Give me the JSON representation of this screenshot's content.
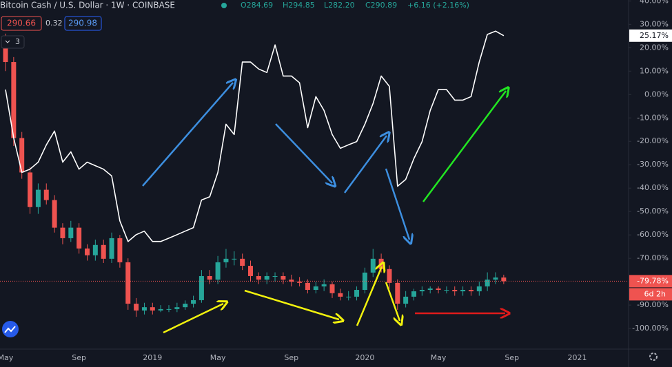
{
  "header": {
    "title": "Bitcoin Cash / U.S. Dollar · 1W · COINBASE",
    "ohlc": [
      "O284.69",
      "H294.85",
      "L282.20",
      "C290.89",
      "+6.16 (+2.16%)"
    ],
    "sell_price": "290.66",
    "spread": "0.32",
    "buy_price": "290.98",
    "indicator_count": "3"
  },
  "countdown": "6d 2h",
  "chart_data": {
    "type": "candlestick",
    "up_color": "#26a69a",
    "down_color": "#ef5350",
    "categories": [
      "May",
      null,
      null,
      null,
      null,
      null,
      null,
      null,
      null,
      "Sep",
      null,
      null,
      null,
      null,
      null,
      null,
      null,
      null,
      "2019",
      null,
      null,
      null,
      null,
      null,
      null,
      null,
      "May",
      null,
      null,
      null,
      null,
      null,
      null,
      null,
      null,
      "Sep",
      null,
      null,
      null,
      null,
      null,
      null,
      null,
      null,
      "2020",
      null,
      null,
      null,
      null,
      null,
      null,
      null,
      null,
      "May",
      null,
      null,
      null,
      null,
      null,
      null,
      null,
      null,
      "Sep",
      null,
      null,
      null,
      null,
      null,
      null,
      null,
      "2021",
      null
    ],
    "open": [
      22.7,
      13.9,
      -18.6,
      -33.3,
      -48.1,
      -40.7,
      -45.1,
      -56.9,
      -61.4,
      -56.9,
      -65.8,
      -68.7,
      -64.3,
      -70.2,
      -61.4,
      -71.7,
      -89.4,
      -92.3,
      -90.9,
      -92.3,
      -91.7,
      -91.7,
      -90.9,
      -89.4,
      -87.9,
      -77.6,
      -79.1,
      -71.7,
      -70.2,
      -70.2,
      -73.2,
      -77.6,
      -79.1,
      -77.6,
      -77.6,
      -79.1,
      -80.0,
      -80.5,
      -83.5,
      -82.0,
      -81.1,
      -84.9,
      -86.4,
      -86.4,
      -83.5,
      -76.1,
      -70.2,
      -74.6,
      -80.5,
      -89.4,
      -86.4,
      -84.1,
      -83.5,
      -82.9,
      -83.5,
      -83.5,
      -84.1,
      -83.5,
      -84.1,
      -82.0,
      -79.1,
      -78.2,
      null,
      null,
      null,
      null,
      null,
      null,
      null,
      null,
      null,
      null
    ],
    "high": [
      26,
      16,
      -16,
      -31,
      -38,
      -38,
      -43,
      -55,
      -54,
      -55,
      -64,
      -62,
      -62,
      -59,
      -60,
      -70,
      -87,
      -89,
      -89,
      -90,
      -90,
      -89,
      -88,
      -86,
      -75,
      -75,
      -69,
      -66,
      -67,
      -68,
      -71,
      -76,
      -76,
      -76,
      -76,
      -77,
      -78,
      -79,
      -80,
      -79,
      -80,
      -83,
      -84,
      -82,
      -74,
      -66,
      -68,
      -73,
      -79,
      -84,
      -83,
      -82,
      -82,
      -82,
      -82,
      -82,
      -82,
      -82,
      -80,
      -76,
      -76,
      -77,
      null,
      null,
      null,
      null,
      null,
      null,
      null,
      null,
      null,
      null
    ],
    "low": [
      10,
      -22,
      -36,
      -51,
      -51,
      -47,
      -59,
      -64,
      -63,
      -68,
      -71,
      -71,
      -72,
      -72,
      -74,
      -92,
      -95,
      -94,
      -94,
      -93,
      -93,
      -93,
      -92,
      -91,
      -89,
      -81,
      -81,
      -74,
      -73,
      -75,
      -80,
      -81,
      -81,
      -80,
      -81,
      -82,
      -82,
      -85,
      -85,
      -84,
      -87,
      -88,
      -88,
      -88,
      -85,
      -78,
      -76,
      -83,
      -92,
      -91,
      -88,
      -86,
      -85,
      -85,
      -85,
      -86,
      -86,
      -86,
      -86,
      -84,
      -81,
      -81,
      null,
      null,
      null,
      null,
      null,
      null,
      null,
      null,
      null,
      null
    ],
    "close": [
      13.9,
      -18.6,
      -33.3,
      -48.1,
      -40.7,
      -45.1,
      -56.9,
      -61.4,
      -56.9,
      -65.8,
      -68.7,
      -64.3,
      -70.2,
      -61.4,
      -71.7,
      -89.4,
      -92.3,
      -90.9,
      -92.3,
      -91.7,
      -91.7,
      -90.9,
      -89.4,
      -87.9,
      -77.6,
      -79.1,
      -71.7,
      -70.2,
      -70.2,
      -73.2,
      -77.6,
      -79.1,
      -77.6,
      -77.6,
      -79.1,
      -80.0,
      -80.5,
      -83.5,
      -82.0,
      -81.1,
      -84.9,
      -86.4,
      -86.4,
      -83.5,
      -76.1,
      -70.2,
      -74.6,
      -80.5,
      -89.4,
      -86.4,
      -84.1,
      -83.5,
      -82.9,
      -83.5,
      -83.5,
      -84.1,
      -83.5,
      -84.1,
      -82.0,
      -79.1,
      -78.2,
      -79.78,
      null,
      null,
      null,
      null,
      null,
      null,
      null,
      null,
      null,
      null
    ],
    "last_label": "-79.78%",
    "series": [
      {
        "type": "line",
        "color": "#ffffff",
        "last_label": "25.17%",
        "values": [
          2.1,
          -18.6,
          -33.3,
          -31.9,
          -28.9,
          -21.5,
          -15.6,
          -28.9,
          -24.5,
          -31.9,
          -28.9,
          -30.4,
          -31.9,
          -34.8,
          -54.0,
          -62.8,
          -59.9,
          -58.4,
          -62.8,
          -62.8,
          -61.4,
          -59.9,
          -58.4,
          -56.9,
          -45.1,
          -43.7,
          -33.3,
          -12.7,
          -17.1,
          13.9,
          13.9,
          10.9,
          9.4,
          21.2,
          7.9,
          7.9,
          5.0,
          -14.2,
          -0.9,
          -6.8,
          -17.1,
          -23.0,
          -21.5,
          -20.1,
          -12.7,
          -3.8,
          7.9,
          3.5,
          -39.2,
          -36.3,
          -27.4,
          -20.1,
          -6.8,
          2.1,
          2.1,
          -2.4,
          -2.4,
          -0.9,
          13.9,
          25.7,
          27.1,
          25.17,
          null,
          null,
          null,
          null,
          null,
          null,
          null,
          null,
          null,
          null
        ]
      }
    ],
    "ylim": [
      -108.8,
      40.4
    ],
    "yticks": [
      {
        "value": 40,
        "label": "40.00%"
      },
      {
        "value": 30,
        "label": "30.00%"
      },
      {
        "value": 20,
        "label": "20.00%"
      },
      {
        "value": 10,
        "label": "10.00%"
      },
      {
        "value": 0,
        "label": "0.00%"
      },
      {
        "value": -10,
        "label": "-10.00%"
      },
      {
        "value": -20,
        "label": "-20.00%"
      },
      {
        "value": -30,
        "label": "-30.00%"
      },
      {
        "value": -40,
        "label": "-40.00%"
      },
      {
        "value": -50,
        "label": "-50.00%"
      },
      {
        "value": -60,
        "label": "-60.00%"
      },
      {
        "value": -70,
        "label": "-70.00%"
      },
      {
        "value": -80,
        "label": "-80.00%"
      },
      {
        "value": -90,
        "label": "-90.00%"
      },
      {
        "value": -100,
        "label": "-100.00%"
      }
    ],
    "grid": false
  }
}
